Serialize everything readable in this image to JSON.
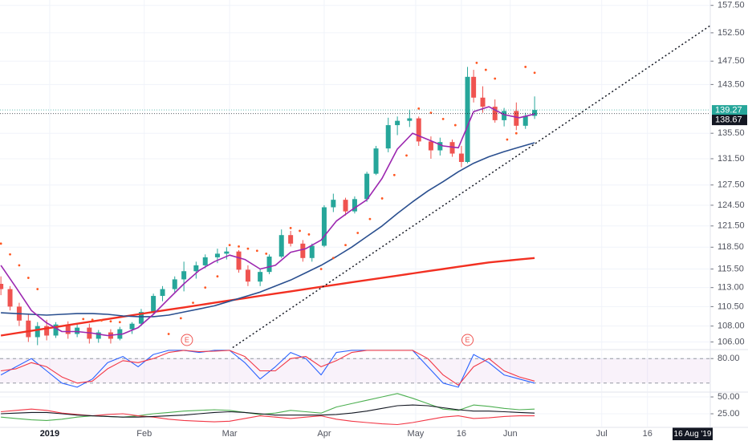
{
  "chart_data": [
    {
      "type": "candlestick",
      "log_scale": true,
      "grid": true,
      "up_color": "#26a69a",
      "down_color": "#ef5350",
      "xlim": [
        -15.3,
        217.6
      ],
      "xticks": [
        {
          "value": 1,
          "label": "2019"
        },
        {
          "value": 32,
          "label": "Feb"
        },
        {
          "value": 60,
          "label": "Mar"
        },
        {
          "value": 91,
          "label": "Apr"
        },
        {
          "value": 121,
          "label": "May"
        },
        {
          "value": 136,
          "label": "16"
        },
        {
          "value": 152,
          "label": "Jun"
        },
        {
          "value": 182,
          "label": "Jul"
        },
        {
          "value": 197,
          "label": "16"
        }
      ],
      "ylim": [
        105.15,
        158.5
      ],
      "yticks": [
        {
          "value": 157.5,
          "label": "157.50"
        },
        {
          "value": 152.5,
          "label": "152.50"
        },
        {
          "value": 147.5,
          "label": "147.50"
        },
        {
          "value": 143.5,
          "label": "143.50"
        },
        {
          "value": 135.5,
          "label": "135.50"
        },
        {
          "value": 131.5,
          "label": "131.50"
        },
        {
          "value": 127.5,
          "label": "127.50"
        },
        {
          "value": 124.5,
          "label": "124.50"
        },
        {
          "value": 121.5,
          "label": "121.50"
        },
        {
          "value": 118.5,
          "label": "118.50"
        },
        {
          "value": 115.5,
          "label": "115.50"
        },
        {
          "value": 113,
          "label": "113.00"
        },
        {
          "value": 110.5,
          "label": "110.50"
        },
        {
          "value": 108,
          "label": "108.00"
        },
        {
          "value": 106,
          "label": "106.00"
        }
      ],
      "x": [
        -15,
        -12,
        -9,
        -6,
        -3,
        0,
        3,
        7,
        10,
        14,
        17,
        21,
        24,
        28,
        31,
        35,
        38,
        42,
        45,
        49,
        52,
        56,
        59,
        63,
        66,
        70,
        73,
        77,
        80,
        84,
        87,
        91,
        94,
        98,
        101,
        105,
        108,
        112,
        115,
        119,
        122,
        126,
        129,
        133,
        136,
        138,
        140,
        143,
        147,
        150,
        154,
        157,
        160
      ],
      "open": [
        113.5,
        112.8,
        110.5,
        108.7,
        106.6,
        108,
        106.8,
        108.2,
        107,
        107.8,
        106.4,
        107.2,
        106.4,
        107.6,
        108.3,
        109.8,
        111.9,
        112.8,
        114.1,
        115.2,
        116,
        117.1,
        117.6,
        117.9,
        115.4,
        113.8,
        115.1,
        117.2,
        120.2,
        119,
        117,
        118.7,
        124.2,
        125.3,
        123.6,
        125.4,
        129.2,
        133.1,
        136.8,
        137.5,
        137.9,
        134.2,
        132.8,
        134.1,
        132.3,
        131,
        144.8,
        141.3,
        139.8,
        137.6,
        139.1,
        136.7,
        138.3
      ],
      "high": [
        114.5,
        113.2,
        111,
        109.5,
        108.5,
        108.8,
        108.5,
        108.6,
        108.3,
        108.3,
        107.5,
        107.6,
        107.9,
        108.5,
        110.2,
        112.2,
        113.2,
        114.5,
        116.5,
        116.5,
        117.5,
        118.3,
        118.5,
        118.1,
        116,
        115.5,
        117.5,
        121,
        120.8,
        119.5,
        119,
        124.5,
        126.2,
        125.6,
        125.8,
        129.5,
        133.5,
        138,
        138.2,
        139.3,
        138.2,
        135,
        134.8,
        134.5,
        133.5,
        146.5,
        146,
        143.2,
        141,
        139.6,
        140.5,
        138.8,
        141.5
      ],
      "low": [
        112,
        110,
        108,
        106,
        105.6,
        106.2,
        106.5,
        106.4,
        106.6,
        105.8,
        105.9,
        105.8,
        106.2,
        107,
        108,
        109.5,
        111.2,
        112.3,
        112.5,
        114.2,
        115.6,
        116.3,
        116.8,
        115,
        113.2,
        113.2,
        114.8,
        117,
        118.6,
        116.5,
        116.5,
        118.5,
        123.5,
        123,
        123.3,
        125,
        129,
        132.5,
        135.2,
        136.5,
        133.5,
        131.5,
        132,
        131.8,
        130.2,
        130.8,
        140.5,
        138.8,
        137.2,
        136.6,
        136,
        136.2,
        137.8
      ],
      "close": [
        112.8,
        110.5,
        108.7,
        106.6,
        108,
        106.8,
        108.2,
        107,
        107.8,
        106.4,
        107.2,
        106.4,
        107.6,
        108.3,
        109.8,
        111.9,
        112.8,
        114.1,
        115.2,
        116,
        117.1,
        117.6,
        117.9,
        115.4,
        113.8,
        115.1,
        117.2,
        120.2,
        119,
        117,
        118.7,
        124.2,
        125.3,
        123.6,
        125.4,
        129.2,
        133.1,
        136.8,
        137.5,
        137.9,
        134.2,
        132.8,
        134.1,
        132.3,
        131,
        144.8,
        141.3,
        139.8,
        137.6,
        139.1,
        136.7,
        138.3,
        139.27
      ],
      "overlays": {
        "x": [
          -15,
          -10,
          -5,
          0,
          5,
          10,
          15,
          20,
          25,
          30,
          35,
          40,
          45,
          50,
          55,
          60,
          65,
          70,
          75,
          80,
          85,
          90,
          95,
          100,
          105,
          110,
          115,
          120,
          125,
          130,
          135,
          140,
          145,
          150,
          155,
          160
        ],
        "series": [
          {
            "color": "#f23022",
            "values": [
              106.8,
              107.1,
              107.4,
              107.7,
              108,
              108.3,
              108.6,
              108.9,
              109.2,
              109.5,
              109.8,
              110.1,
              110.4,
              110.7,
              111,
              111.3,
              111.6,
              111.9,
              112.2,
              112.5,
              112.8,
              113.1,
              113.4,
              113.7,
              114,
              114.3,
              114.6,
              114.9,
              115.2,
              115.5,
              115.8,
              116.1,
              116.4,
              116.6,
              116.8,
              117
            ]
          },
          {
            "color": "#2a4f8f",
            "values": [
              109.7,
              109.6,
              109.5,
              109.4,
              109.5,
              109.6,
              109.6,
              109.5,
              109.3,
              109.2,
              109.2,
              109.4,
              109.8,
              110.2,
              110.6,
              111.2,
              111.8,
              112.4,
              113.2,
              114,
              115,
              116,
              117.2,
              118.5,
              120,
              121.5,
              123.3,
              125,
              126.6,
              128,
              129.5,
              130.8,
              131.8,
              132.6,
              133.3,
              134
            ]
          },
          {
            "color": "#9c27b0",
            "values": [
              116,
              113,
              110,
              108.4,
              107.3,
              107.3,
              107.1,
              106.8,
              107,
              107.8,
              109.5,
              111.5,
              113.5,
              115.3,
              116.5,
              117.4,
              116.8,
              115.5,
              116,
              117.8,
              118.3,
              119.5,
              122.2,
              123.8,
              125.3,
              128.5,
              133,
              135.5,
              134.5,
              133.5,
              133.2,
              139,
              139.8,
              138.5,
              138,
              138.6
            ]
          }
        ]
      },
      "sar": {
        "color": "#ff5722",
        "x": [
          -15,
          -12,
          -9,
          -6,
          -3,
          12,
          15,
          18,
          21,
          24,
          40,
          44,
          48,
          52,
          56,
          60,
          63,
          66,
          69,
          72,
          80,
          83,
          86,
          90,
          94,
          98,
          102,
          106,
          110,
          114,
          118,
          122,
          126,
          130,
          134,
          141,
          144,
          147,
          151,
          154,
          157,
          160
        ],
        "values": [
          119,
          117.5,
          116,
          114.3,
          112.8,
          108.9,
          108.8,
          108.7,
          108.6,
          108.5,
          107,
          109,
          111,
          113,
          114.5,
          118.8,
          118.6,
          118.3,
          118,
          117.6,
          121.2,
          120.8,
          120.3,
          115.5,
          117,
          118.8,
          120.5,
          122.5,
          125.5,
          129,
          132,
          139.5,
          138.8,
          137.8,
          136.8,
          147.2,
          146,
          144.5,
          134.5,
          135.5,
          146.5,
          145.5
        ]
      },
      "trendline": {
        "color": "#131722",
        "x": [
          61,
          217.6
        ],
        "values": [
          105.3,
          153.8
        ]
      },
      "price_lines": [
        {
          "value": 139.27,
          "color": "#26a69a"
        },
        {
          "value": 138.67,
          "color": "#131722"
        }
      ],
      "events": [
        {
          "x": 46,
          "label": "E"
        },
        {
          "x": 138,
          "label": "E"
        }
      ],
      "cursor_label": "16 Aug '19"
    },
    {
      "type": "line",
      "grid": true,
      "ylim": [
        0,
        100
      ],
      "yticks": [
        {
          "value": 80,
          "label": "80.00"
        }
      ],
      "band": [
        20,
        80
      ],
      "x": [
        -15,
        -10,
        -5,
        0,
        5,
        10,
        15,
        20,
        25,
        30,
        35,
        40,
        45,
        50,
        55,
        60,
        65,
        70,
        75,
        80,
        85,
        90,
        95,
        100,
        105,
        110,
        115,
        120,
        125,
        130,
        135,
        140,
        145,
        150,
        155,
        160
      ],
      "series": [
        {
          "color": "#2962ff",
          "values": [
            40,
            60,
            80,
            50,
            20,
            10,
            30,
            70,
            85,
            60,
            90,
            100,
            100,
            95,
            100,
            100,
            70,
            30,
            60,
            95,
            80,
            40,
            95,
            100,
            100,
            100,
            100,
            100,
            60,
            20,
            10,
            90,
            70,
            40,
            30,
            20
          ]
        },
        {
          "color": "#f23645",
          "values": [
            50,
            55,
            70,
            60,
            35,
            20,
            25,
            55,
            75,
            70,
            80,
            95,
            100,
            97,
            98,
            100,
            85,
            50,
            50,
            80,
            85,
            60,
            75,
            95,
            100,
            100,
            100,
            100,
            80,
            40,
            15,
            60,
            80,
            50,
            35,
            25
          ]
        }
      ]
    },
    {
      "type": "line",
      "grid": true,
      "ylim": [
        6,
        56
      ],
      "yticks": [
        {
          "value": 50,
          "label": "50.00"
        },
        {
          "value": 25,
          "label": "25.00"
        }
      ],
      "x": [
        -15,
        -10,
        -5,
        0,
        5,
        10,
        15,
        20,
        25,
        30,
        35,
        40,
        45,
        50,
        55,
        60,
        65,
        70,
        75,
        80,
        85,
        90,
        95,
        100,
        105,
        110,
        115,
        120,
        125,
        130,
        135,
        140,
        145,
        150,
        155,
        160
      ],
      "series": [
        {
          "color": "#4caf50",
          "values": [
            20,
            18,
            16,
            15,
            17,
            20,
            22,
            21,
            20,
            22,
            25,
            27,
            29,
            30,
            31,
            30,
            27,
            24,
            26,
            30,
            28,
            26,
            35,
            40,
            45,
            50,
            55,
            48,
            40,
            32,
            30,
            38,
            36,
            33,
            31,
            32
          ]
        },
        {
          "color": "#f23645",
          "values": [
            28,
            30,
            32,
            30,
            26,
            24,
            22,
            24,
            25,
            22,
            20,
            17,
            15,
            14,
            13,
            14,
            18,
            22,
            20,
            18,
            20,
            22,
            17,
            14,
            12,
            10,
            9,
            12,
            16,
            20,
            22,
            18,
            19,
            21,
            22,
            22
          ]
        },
        {
          "color": "#131722",
          "values": [
            25,
            26,
            27,
            27,
            25,
            23,
            22,
            21,
            20,
            20,
            21,
            22,
            23,
            25,
            27,
            28,
            27,
            25,
            23,
            23,
            23,
            23,
            24,
            26,
            29,
            33,
            37,
            38,
            37,
            34,
            31,
            29,
            29,
            28,
            27,
            26
          ]
        }
      ]
    }
  ]
}
